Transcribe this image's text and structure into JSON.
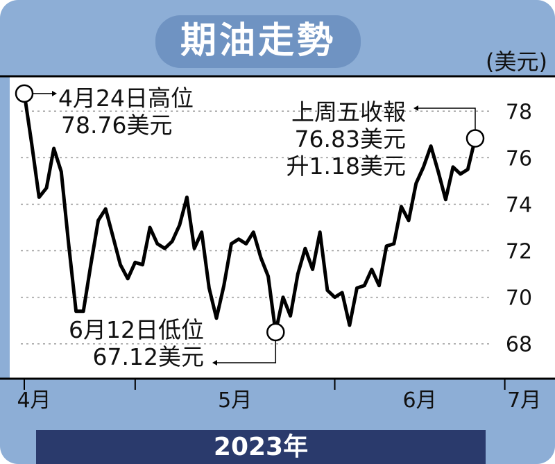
{
  "chart_data": {
    "type": "line",
    "title": "期油走勢",
    "ylabel": "(美元)",
    "xlabel": "2023年",
    "ylim": [
      66.5,
      79.5
    ],
    "yticks": [
      68,
      70,
      72,
      74,
      76,
      78
    ],
    "ytick_labels": [
      "68",
      "70",
      "72",
      "74",
      "76",
      "78"
    ],
    "month_labels": [
      {
        "label": "4月",
        "x": 0
      },
      {
        "label": "5月",
        "x": 15
      },
      {
        "label": "6月",
        "x": 42
      },
      {
        "label": "7月",
        "x": 65
      }
    ],
    "grid": true,
    "series": [
      {
        "values": [
          78.76,
          76.6,
          74.3,
          74.7,
          76.4,
          75.4,
          72.3,
          69.4,
          69.4,
          71.4,
          73.3,
          73.8,
          72.6,
          71.4,
          70.8,
          71.5,
          71.4,
          73.0,
          72.3,
          72.1,
          72.4,
          73.1,
          74.3,
          72.1,
          72.8,
          70.4,
          69.1,
          70.5,
          72.3,
          72.5,
          72.3,
          72.8,
          71.7,
          70.9,
          68.5,
          70.0,
          69.2,
          71.0,
          72.1,
          71.2,
          72.8,
          70.3,
          70.0,
          70.2,
          68.8,
          70.4,
          70.5,
          71.2,
          70.5,
          72.2,
          72.3,
          73.9,
          73.3,
          74.9,
          75.6,
          76.5,
          75.4,
          74.2,
          75.6,
          75.3,
          75.5,
          76.83
        ]
      }
    ],
    "annotations": {
      "high_lines": [
        "4月24日高位",
        "78.76美元"
      ],
      "low_lines": [
        "6月12日低位",
        "67.12美元"
      ],
      "last_lines": [
        "上周五收報",
        "76.83美元",
        "升1.18美元"
      ]
    },
    "marker_points": [
      0,
      34,
      61
    ]
  },
  "colors": {
    "background": "#8daed6",
    "title_pill": "#6f93c2",
    "plot_area": "#ffffff",
    "line": "#000000",
    "grid": "#b0b0b0",
    "year_banner": "#2a3a6c"
  }
}
